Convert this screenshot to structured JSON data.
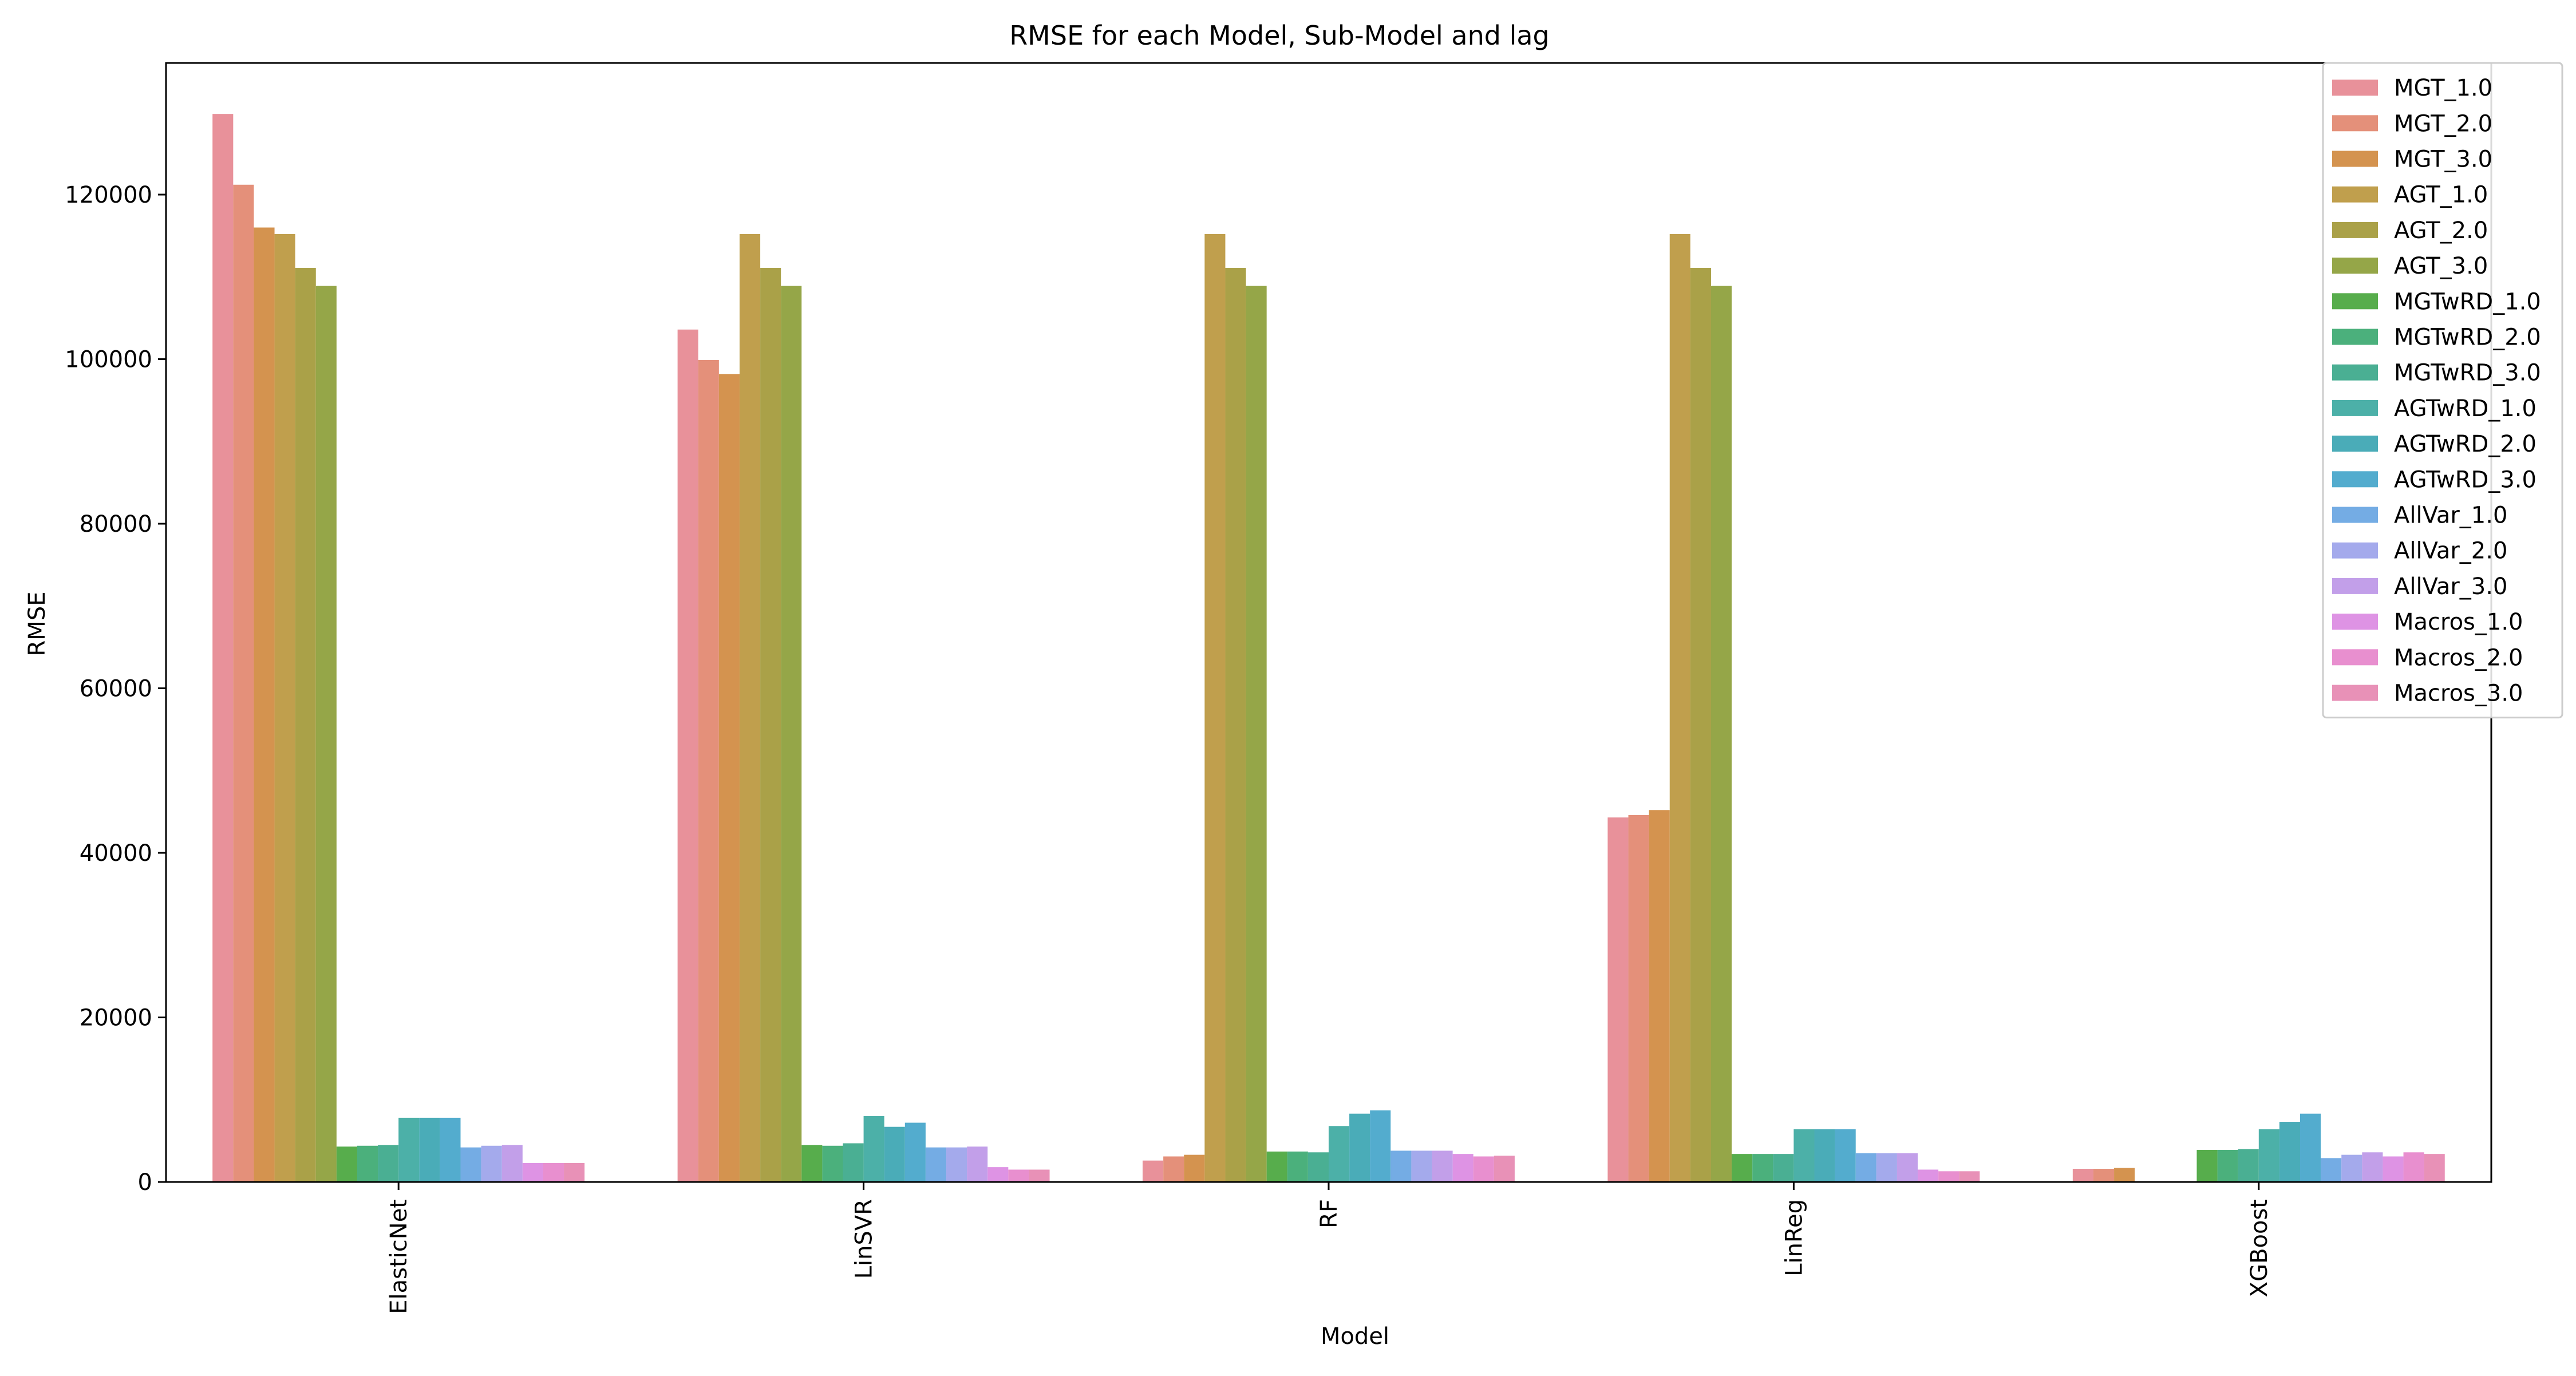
{
  "chart_data": {
    "type": "bar",
    "title": "RMSE for each Model, Sub-Model and lag",
    "xlabel": "Model",
    "ylabel": "RMSE",
    "ylim": [
      0,
      136000
    ],
    "yticks": [
      0,
      20000,
      40000,
      60000,
      80000,
      100000,
      120000
    ],
    "ytick_labels": [
      "0",
      "20000",
      "40000",
      "60000",
      "80000",
      "100000",
      "120000"
    ],
    "categories": [
      "ElasticNet",
      "LinSVR",
      "RF",
      "LinReg",
      "XGBoost"
    ],
    "grid": false,
    "legend_position": "top-right",
    "series": [
      {
        "name": "MGT_1.0",
        "color": "#e8919a",
        "values": [
          129800,
          103600,
          2600,
          44300,
          1600
        ]
      },
      {
        "name": "MGT_2.0",
        "color": "#e4907a",
        "values": [
          121200,
          99900,
          3100,
          44600,
          1600
        ]
      },
      {
        "name": "MGT_3.0",
        "color": "#d4934f",
        "values": [
          116000,
          98200,
          3300,
          45200,
          1700
        ]
      },
      {
        "name": "AGT_1.0",
        "color": "#c09f4d",
        "values": [
          115200,
          115200,
          115200,
          115200,
          null
        ]
      },
      {
        "name": "AGT_2.0",
        "color": "#aaa148",
        "values": [
          111100,
          111100,
          111100,
          111100,
          null
        ]
      },
      {
        "name": "AGT_3.0",
        "color": "#95a648",
        "values": [
          108900,
          108900,
          108900,
          108900,
          null
        ]
      },
      {
        "name": "MGTwRD_1.0",
        "color": "#57ad4c",
        "values": [
          4300,
          4500,
          3700,
          3400,
          3900
        ]
      },
      {
        "name": "MGTwRD_2.0",
        "color": "#4bb07c",
        "values": [
          4400,
          4400,
          3700,
          3400,
          3900
        ]
      },
      {
        "name": "MGTwRD_3.0",
        "color": "#4aaf93",
        "values": [
          4500,
          4700,
          3600,
          3400,
          4000
        ]
      },
      {
        "name": "AGTwRD_1.0",
        "color": "#4cb0a8",
        "values": [
          7800,
          8000,
          6800,
          6400,
          6400
        ]
      },
      {
        "name": "AGTwRD_2.0",
        "color": "#4aacb8",
        "values": [
          7800,
          6700,
          8300,
          6400,
          7300
        ]
      },
      {
        "name": "AGTwRD_3.0",
        "color": "#53acce",
        "values": [
          7800,
          7200,
          8700,
          6400,
          8300
        ]
      },
      {
        "name": "AllVar_1.0",
        "color": "#74ace4",
        "values": [
          4200,
          4200,
          3800,
          3500,
          2900
        ]
      },
      {
        "name": "AllVar_2.0",
        "color": "#a4aaec",
        "values": [
          4400,
          4200,
          3800,
          3500,
          3300
        ]
      },
      {
        "name": "AllVar_3.0",
        "color": "#c29fe9",
        "values": [
          4500,
          4300,
          3800,
          3500,
          3600
        ]
      },
      {
        "name": "Macros_1.0",
        "color": "#de93e4",
        "values": [
          2300,
          1800,
          3400,
          1500,
          3100
        ]
      },
      {
        "name": "Macros_2.0",
        "color": "#e88fcf",
        "values": [
          2300,
          1500,
          3100,
          1300,
          3600
        ]
      },
      {
        "name": "Macros_3.0",
        "color": "#e891b7",
        "values": [
          2300,
          1500,
          3200,
          1300,
          3400
        ]
      }
    ]
  }
}
